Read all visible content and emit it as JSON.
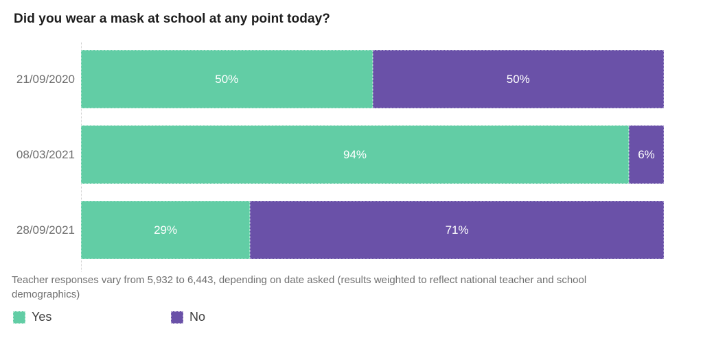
{
  "chart_data": {
    "type": "bar",
    "orientation": "horizontal",
    "stacked": true,
    "title": "Did you wear a mask at school at any point today?",
    "categories": [
      "21/09/2020",
      "08/03/2021",
      "28/09/2021"
    ],
    "series": [
      {
        "name": "Yes",
        "color": "#62CDA5",
        "values": [
          50,
          94,
          29
        ]
      },
      {
        "name": "No",
        "color": "#6A51A8",
        "values": [
          50,
          6,
          71
        ]
      }
    ],
    "value_label_suffix": "%",
    "xlim": [
      0,
      100
    ],
    "grid": "off",
    "axis_style": "dotted-left-baseline",
    "legend_position": "bottom-left",
    "note": "Teacher responses vary from 5,932 to 6,443, depending on date asked (results weighted to reflect national teacher and school demographics)"
  },
  "colors": {
    "title_text": "#1c1c1c",
    "category_text": "#6e6e6e",
    "note_text": "#707070",
    "value_text": "#ffffff",
    "axis_line": "#cccccc",
    "series_yes": "#62CDA5",
    "series_no": "#6A51A8"
  }
}
